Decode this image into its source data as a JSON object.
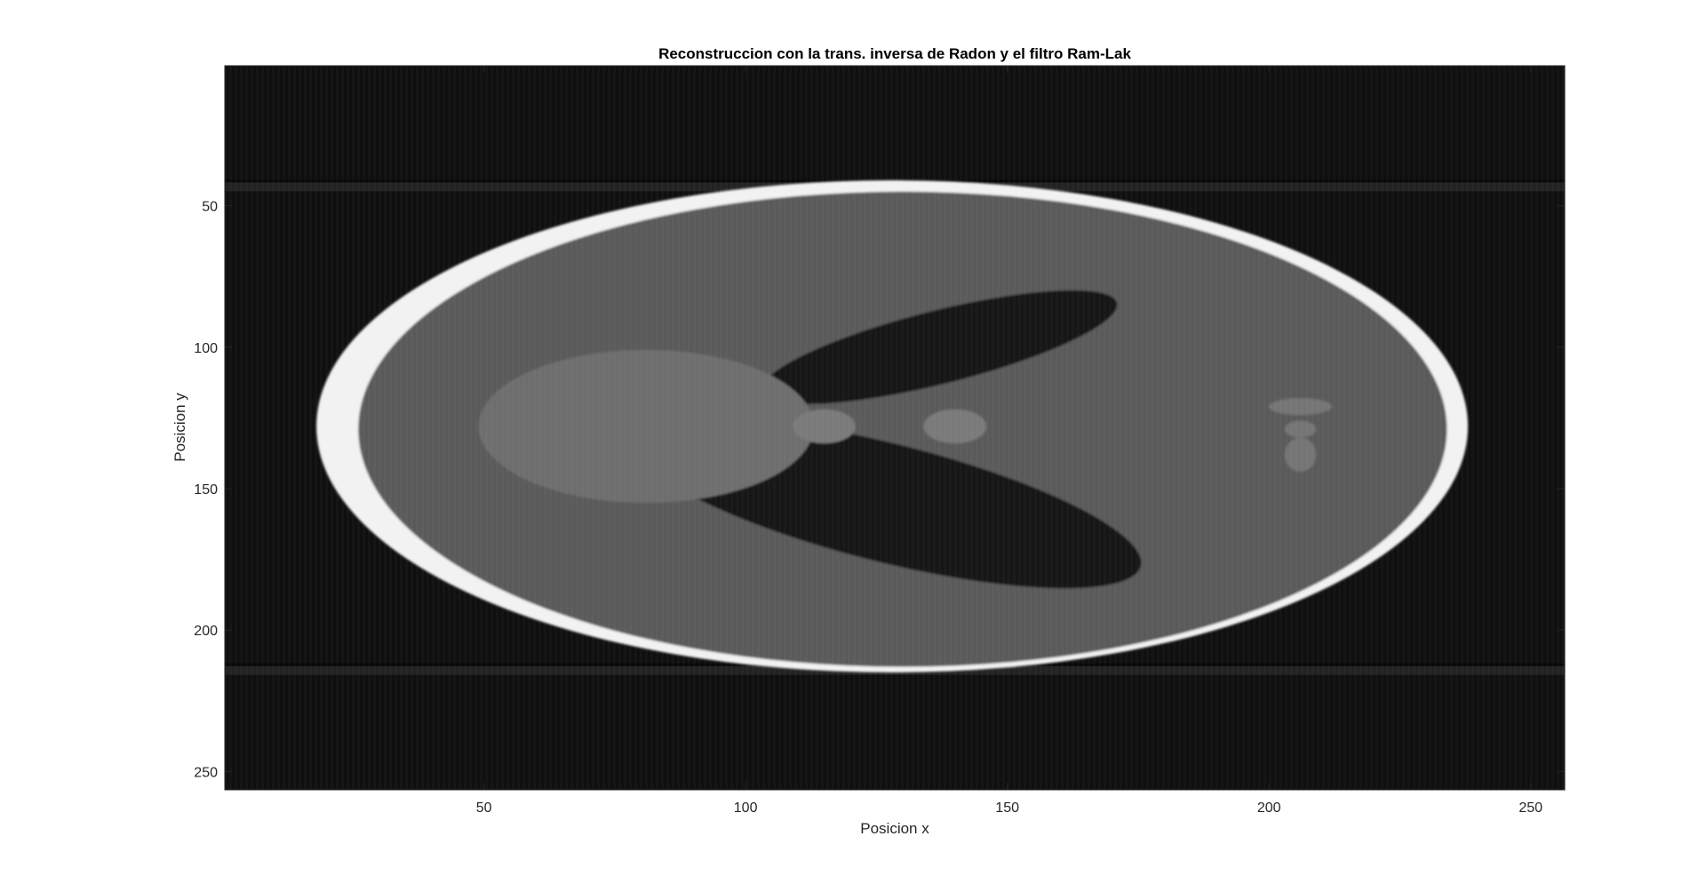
{
  "chart_data": {
    "type": "heatmap",
    "title": "Reconstruccion con la trans. inversa de Radon y el filtro Ram-Lak",
    "xlabel": "Posicion x",
    "ylabel": "Posicion y",
    "xlim": [
      0.5,
      256.5
    ],
    "ylim": [
      0.5,
      256.5
    ],
    "y_direction": "reverse",
    "colormap": "gray",
    "grid": false,
    "x_ticks": [
      50,
      100,
      150,
      200,
      250
    ],
    "y_ticks": [
      50,
      100,
      150,
      200,
      250
    ],
    "x_tick_labels": [
      "50",
      "100",
      "150",
      "200",
      "250"
    ],
    "y_tick_labels": [
      "50",
      "100",
      "150",
      "200",
      "250"
    ],
    "background_color": "#0f0f0f",
    "artifact_line_rows": [
      43,
      214
    ],
    "ellipses": [
      {
        "name": "outer-skull",
        "cx": 128,
        "cy": 128,
        "rx": 110,
        "ry": 87,
        "angle": 0,
        "color": "#f2f2f2"
      },
      {
        "name": "brain",
        "cx": 130,
        "cy": 129,
        "rx": 104,
        "ry": 84,
        "angle": 0,
        "color": "#5a5a5a"
      },
      {
        "name": "right-dark-region",
        "cx": 137,
        "cy": 100,
        "rx": 35,
        "ry": 13,
        "angle": 14,
        "color": "#171717"
      },
      {
        "name": "left-dark-region",
        "cx": 127,
        "cy": 155,
        "rx": 50,
        "ry": 21,
        "angle": -14,
        "color": "#171717"
      },
      {
        "name": "central-region",
        "cx": 81,
        "cy": 128,
        "rx": 32,
        "ry": 27,
        "angle": 0,
        "color": "#6e6e6e"
      },
      {
        "name": "small-spot-1",
        "cx": 115,
        "cy": 128,
        "rx": 6,
        "ry": 6,
        "angle": 0,
        "color": "#7a7a7a"
      },
      {
        "name": "small-spot-2",
        "cx": 140,
        "cy": 128,
        "rx": 6,
        "ry": 6,
        "angle": 0,
        "color": "#7a7a7a"
      },
      {
        "name": "small-spot-3",
        "cx": 206,
        "cy": 121,
        "rx": 6,
        "ry": 3,
        "angle": 0,
        "color": "#747474"
      },
      {
        "name": "small-spot-4",
        "cx": 206,
        "cy": 129,
        "rx": 3,
        "ry": 3,
        "angle": 0,
        "color": "#747474"
      },
      {
        "name": "small-spot-5",
        "cx": 206,
        "cy": 138,
        "rx": 3,
        "ry": 6,
        "angle": 0,
        "color": "#747474"
      }
    ]
  }
}
